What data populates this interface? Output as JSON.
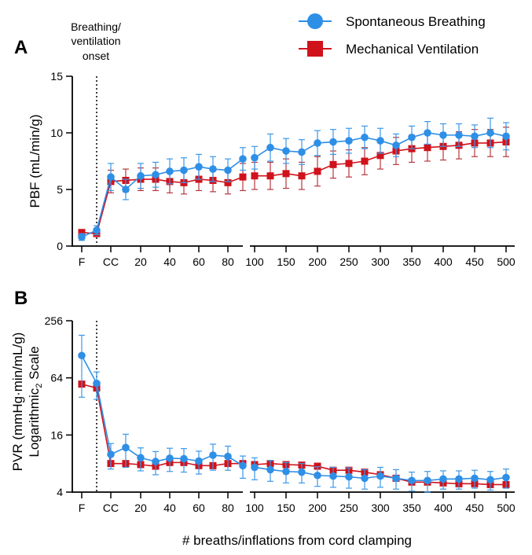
{
  "annotation": {
    "onset_lines": [
      "Breathing/",
      "ventilation",
      "onset"
    ]
  },
  "legend": [
    {
      "label": "Spontaneous Breathing",
      "color": "#2E8FE6",
      "marker": "circle"
    },
    {
      "label": "Mechanical Ventilation",
      "color": "#D0121B",
      "marker": "square"
    }
  ],
  "shared_xlabel": "# breaths/inflations from cord clamping",
  "x_ticks": [
    "F",
    "CC",
    "20",
    "40",
    "60",
    "80",
    "100",
    "150",
    "200",
    "250",
    "300",
    "350",
    "400",
    "450",
    "500"
  ],
  "chart_data": [
    {
      "panel": "A",
      "type": "line",
      "ylabel": "PBF (mL/min/g)",
      "yscale": "linear",
      "ylim": [
        0,
        15
      ],
      "yticks": [
        "0",
        "5",
        "10",
        "15"
      ],
      "x_categories": [
        "F",
        "onset",
        "CC",
        "10",
        "20",
        "30",
        "40",
        "50",
        "60",
        "70",
        "80",
        "90",
        "100",
        "125",
        "150",
        "175",
        "200",
        "225",
        "250",
        "275",
        "300",
        "325",
        "350",
        "375",
        "400",
        "425",
        "450",
        "475",
        "500"
      ],
      "series": [
        {
          "name": "Spontaneous Breathing",
          "values": [
            0.8,
            1.4,
            6.1,
            5.0,
            6.2,
            6.3,
            6.6,
            6.7,
            7.0,
            6.8,
            6.7,
            7.7,
            7.8,
            8.7,
            8.4,
            8.3,
            9.1,
            9.2,
            9.3,
            9.6,
            9.3,
            8.9,
            9.6,
            10.0,
            9.8,
            9.8,
            9.7,
            10.0,
            9.7
          ],
          "errors": [
            0.3,
            0.4,
            1.2,
            0.9,
            1.1,
            1.1,
            1.1,
            1.1,
            1.1,
            1.1,
            1.0,
            1.0,
            1.0,
            1.2,
            1.1,
            1.1,
            1.1,
            1.1,
            1.1,
            1.0,
            1.1,
            1.0,
            1.0,
            1.0,
            1.0,
            1.0,
            1.0,
            1.3,
            1.2
          ]
        },
        {
          "name": "Mechanical Ventilation",
          "values": [
            1.2,
            1.1,
            5.7,
            5.8,
            5.9,
            5.9,
            5.7,
            5.6,
            5.9,
            5.8,
            5.6,
            6.1,
            6.2,
            6.2,
            6.4,
            6.2,
            6.6,
            7.2,
            7.3,
            7.5,
            8.0,
            8.4,
            8.6,
            8.7,
            8.8,
            8.9,
            9.1,
            9.1,
            9.2
          ],
          "errors": [
            0.2,
            0.2,
            1.0,
            1.0,
            1.0,
            1.0,
            1.0,
            1.0,
            1.0,
            1.0,
            1.0,
            1.2,
            1.2,
            1.2,
            1.3,
            1.2,
            1.3,
            1.2,
            1.2,
            1.2,
            1.2,
            1.2,
            1.2,
            1.2,
            1.2,
            1.2,
            1.2,
            1.2,
            1.3
          ]
        }
      ]
    },
    {
      "panel": "B",
      "type": "line",
      "ylabel_lines": [
        "PVR (mmHg·min/mL/g)",
        "Logarithmic",
        "2",
        " Scale"
      ],
      "yscale": "log2",
      "ylim": [
        4,
        256
      ],
      "yticks": [
        "4",
        "16",
        "64",
        "256"
      ],
      "x_categories": [
        "F",
        "onset",
        "CC",
        "10",
        "20",
        "30",
        "40",
        "50",
        "60",
        "70",
        "80",
        "90",
        "100",
        "125",
        "150",
        "175",
        "200",
        "225",
        "250",
        "275",
        "300",
        "325",
        "350",
        "375",
        "400",
        "425",
        "450",
        "475",
        "500"
      ],
      "series": [
        {
          "name": "Spontaneous Breathing",
          "values": [
            110,
            56,
            10.0,
            11.8,
            9.2,
            8.4,
            9.1,
            9.0,
            8.5,
            9.8,
            9.5,
            7.6,
            7.3,
            6.9,
            6.6,
            6.5,
            6.0,
            5.9,
            5.8,
            5.6,
            5.9,
            5.6,
            5.3,
            5.3,
            5.5,
            5.5,
            5.6,
            5.4,
            5.7
          ],
          "errors": [
            70,
            18,
            3.0,
            4.5,
            2.5,
            2.3,
            2.5,
            2.5,
            2.3,
            3.0,
            2.7,
            2.0,
            1.9,
            1.7,
            1.6,
            1.5,
            1.4,
            1.4,
            1.4,
            1.3,
            1.4,
            1.3,
            1.2,
            1.3,
            1.2,
            1.2,
            1.2,
            1.2,
            1.3
          ]
        },
        {
          "name": "Mechanical Ventilation",
          "values": [
            55,
            50,
            8.0,
            8.0,
            7.8,
            7.5,
            8.2,
            8.2,
            7.6,
            7.6,
            8.0,
            8.0,
            7.8,
            8.0,
            7.8,
            7.7,
            7.5,
            6.8,
            6.8,
            6.5,
            6.1,
            5.6,
            5.1,
            5.1,
            5.0,
            4.9,
            4.9,
            4.8,
            4.8
          ]
        }
      ]
    }
  ]
}
